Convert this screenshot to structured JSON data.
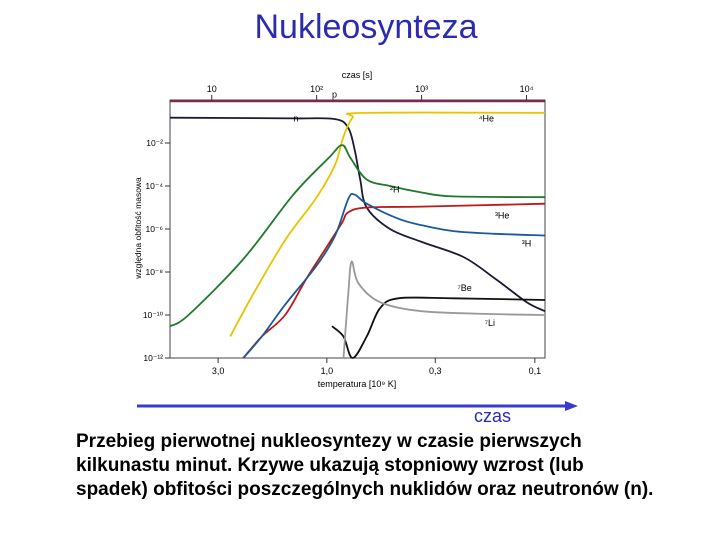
{
  "slide": {
    "title": "Nukleosynteza",
    "arrow_label": "czas",
    "caption": "Przebieg pierwotnej nukleosyntezy w czasie pierwszych kilkunastu minut. Krzywe ukazują stopniowy wzrost (lub spadek) obfitości poszczególnych nuklidów oraz neutronów (n).",
    "arrow_color": "#3a3ad0"
  },
  "chart_data": {
    "type": "line",
    "title": "",
    "xlabel": "temperatura [10⁹ K]",
    "x2label": "czas [s]",
    "ylabel": "względna obfitość masowa",
    "x_scale": "log",
    "y_scale": "log",
    "xlim_time_s": [
      4,
      15000
    ],
    "ylim": [
      1e-12,
      1
    ],
    "top_ticks": [
      {
        "value": 10,
        "label": "10"
      },
      {
        "value": 100,
        "label": "10²"
      },
      {
        "value": 1000,
        "label": "10³"
      },
      {
        "value": 10000,
        "label": "10⁴"
      }
    ],
    "bottom_ticks": [
      {
        "label": "3,0",
        "time_s": 11.5
      },
      {
        "label": "1,0",
        "time_s": 125
      },
      {
        "label": "0,3",
        "time_s": 1350
      },
      {
        "label": "0,1",
        "time_s": 12000
      }
    ],
    "y_ticks": [
      {
        "value": 0.01,
        "label": "10⁻²"
      },
      {
        "value": 0.0001,
        "label": "10⁻⁴"
      },
      {
        "value": 1e-06,
        "label": "10⁻⁶"
      },
      {
        "value": 1e-08,
        "label": "10⁻⁸"
      },
      {
        "value": 1e-10,
        "label": "10⁻¹⁰"
      },
      {
        "value": 1e-12,
        "label": "10⁻¹²"
      }
    ],
    "grid": false,
    "legend": "none",
    "series": [
      {
        "name": "p",
        "color": "#8b2252",
        "points": [
          [
            4,
            0.87
          ],
          [
            15000,
            0.87
          ]
        ]
      },
      {
        "name": "n",
        "color": "#1a1a33",
        "points": [
          [
            4,
            0.15
          ],
          [
            60,
            0.14
          ],
          [
            150,
            0.13
          ],
          [
            200,
            0.05
          ],
          [
            230,
            0.005
          ],
          [
            260,
            0.0002
          ],
          [
            300,
            1e-05
          ],
          [
            500,
            1e-06
          ],
          [
            1000,
            2.5e-07
          ],
          [
            2500,
            5e-08
          ],
          [
            5000,
            5e-09
          ],
          [
            10000,
            4e-10
          ],
          [
            15000,
            1.5e-10
          ]
        ]
      },
      {
        "name": "⁴He",
        "color": "#e8c400",
        "points": [
          [
            15,
            1e-11
          ],
          [
            25,
            1e-09
          ],
          [
            50,
            3e-07
          ],
          [
            100,
            3e-05
          ],
          [
            150,
            0.001
          ],
          [
            180,
            0.02
          ],
          [
            220,
            0.15
          ],
          [
            280,
            0.25
          ],
          [
            15000,
            0.25
          ]
        ]
      },
      {
        "name": "²H",
        "color": "#1e7a2e",
        "points": [
          [
            4,
            3e-11
          ],
          [
            6,
            1e-10
          ],
          [
            20,
            4e-08
          ],
          [
            60,
            4e-05
          ],
          [
            130,
            0.002
          ],
          [
            175,
            0.008
          ],
          [
            210,
            0.002
          ],
          [
            300,
            0.0002
          ],
          [
            500,
            0.0001
          ],
          [
            1000,
            5e-05
          ],
          [
            2000,
            3.3e-05
          ],
          [
            15000,
            3e-05
          ]
        ]
      },
      {
        "name": "³He",
        "color": "#c01818",
        "points": [
          [
            20,
            1e-12
          ],
          [
            30,
            1e-11
          ],
          [
            50,
            1e-10
          ],
          [
            80,
            5e-09
          ],
          [
            130,
            2e-07
          ],
          [
            175,
            2e-06
          ],
          [
            200,
            6e-06
          ],
          [
            300,
            1e-05
          ],
          [
            1000,
            1.1e-05
          ],
          [
            15000,
            1.5e-05
          ]
        ]
      },
      {
        "name": "³H",
        "color": "#1a5a9a",
        "points": [
          [
            20,
            1e-12
          ],
          [
            30,
            1e-11
          ],
          [
            50,
            3e-10
          ],
          [
            100,
            2e-08
          ],
          [
            150,
            5e-07
          ],
          [
            200,
            2.5e-05
          ],
          [
            230,
            4e-05
          ],
          [
            300,
            1.5e-05
          ],
          [
            600,
            3e-06
          ],
          [
            1000,
            1.5e-06
          ],
          [
            2000,
            8e-07
          ],
          [
            5000,
            6e-07
          ],
          [
            15000,
            5e-07
          ]
        ]
      },
      {
        "name": "⁷Be",
        "color": "#111111",
        "points": [
          [
            140,
            3e-11
          ],
          [
            180,
            1e-11
          ],
          [
            220,
            1e-12
          ],
          [
            300,
            1e-11
          ],
          [
            400,
            2e-10
          ],
          [
            600,
            6e-10
          ],
          [
            2000,
            6e-10
          ],
          [
            15000,
            5e-10
          ]
        ]
      },
      {
        "name": "⁷Li",
        "color": "#999999",
        "points": [
          [
            180,
            1e-12
          ],
          [
            200,
            1e-09
          ],
          [
            215,
            3e-08
          ],
          [
            250,
            3e-09
          ],
          [
            400,
            4e-10
          ],
          [
            1000,
            1.5e-10
          ],
          [
            5000,
            1.1e-10
          ],
          [
            15000,
            1e-10
          ]
        ]
      }
    ]
  }
}
